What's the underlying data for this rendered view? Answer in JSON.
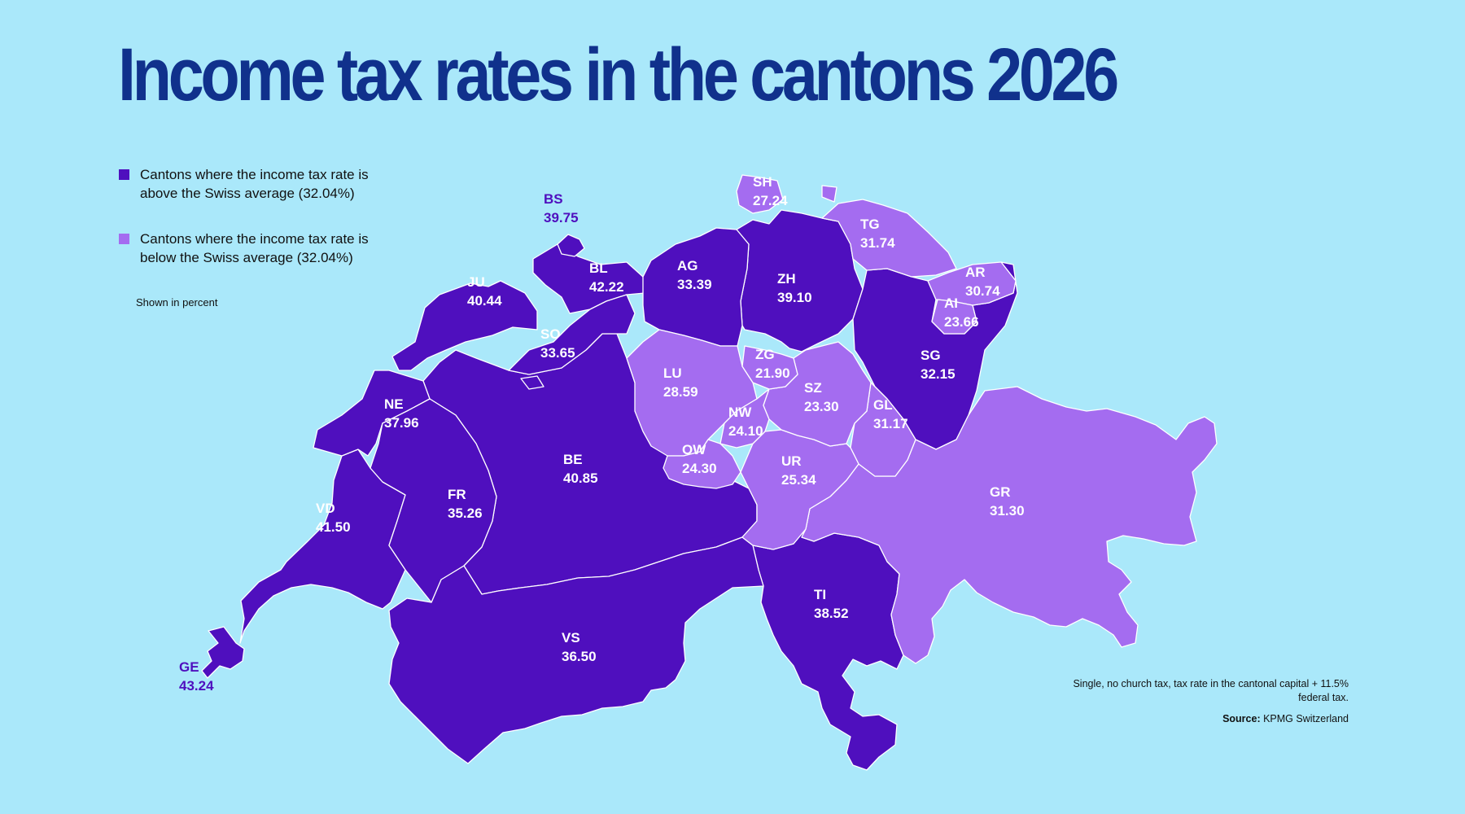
{
  "title": "Income tax rates in the cantons 2026",
  "legend": {
    "above": "Cantons where the income tax rate is above the Swiss average (32.04%)",
    "below": "Cantons where the income tax rate is below the Swiss average (32.04%)",
    "unit": "Shown in percent"
  },
  "colors": {
    "background": "#aae8fa",
    "above": "#4f0fbe",
    "below": "#a46cf0",
    "border": "#ffffff",
    "title": "#10318c"
  },
  "note": "Single, no church tax, tax rate in the cantonal capital + 11.5% federal tax.",
  "source_label": "Source:",
  "source": "KPMG Switzerland",
  "cantons": [
    {
      "code": "GE",
      "rate": "43.24",
      "group": "above"
    },
    {
      "code": "BL",
      "rate": "42.22",
      "group": "above"
    },
    {
      "code": "VD",
      "rate": "41.50",
      "group": "above"
    },
    {
      "code": "BE",
      "rate": "40.85",
      "group": "above"
    },
    {
      "code": "JU",
      "rate": "40.44",
      "group": "above"
    },
    {
      "code": "BS",
      "rate": "39.75",
      "group": "above"
    },
    {
      "code": "ZH",
      "rate": "39.10",
      "group": "above"
    },
    {
      "code": "TI",
      "rate": "38.52",
      "group": "above"
    },
    {
      "code": "NE",
      "rate": "37.96",
      "group": "above"
    },
    {
      "code": "VS",
      "rate": "36.50",
      "group": "above"
    },
    {
      "code": "FR",
      "rate": "35.26",
      "group": "above"
    },
    {
      "code": "SO",
      "rate": "33.65",
      "group": "above"
    },
    {
      "code": "AG",
      "rate": "33.39",
      "group": "above"
    },
    {
      "code": "SG",
      "rate": "32.15",
      "group": "above"
    },
    {
      "code": "TG",
      "rate": "31.74",
      "group": "below"
    },
    {
      "code": "GR",
      "rate": "31.30",
      "group": "below"
    },
    {
      "code": "GL",
      "rate": "31.17",
      "group": "below"
    },
    {
      "code": "AR",
      "rate": "30.74",
      "group": "below"
    },
    {
      "code": "LU",
      "rate": "28.59",
      "group": "below"
    },
    {
      "code": "SH",
      "rate": "27.24",
      "group": "below"
    },
    {
      "code": "UR",
      "rate": "25.34",
      "group": "below"
    },
    {
      "code": "OW",
      "rate": "24.30",
      "group": "below"
    },
    {
      "code": "NW",
      "rate": "24.10",
      "group": "below"
    },
    {
      "code": "AI",
      "rate": "23.66",
      "group": "below"
    },
    {
      "code": "SZ",
      "rate": "23.30",
      "group": "below"
    },
    {
      "code": "ZG",
      "rate": "21.90",
      "group": "below"
    }
  ]
}
